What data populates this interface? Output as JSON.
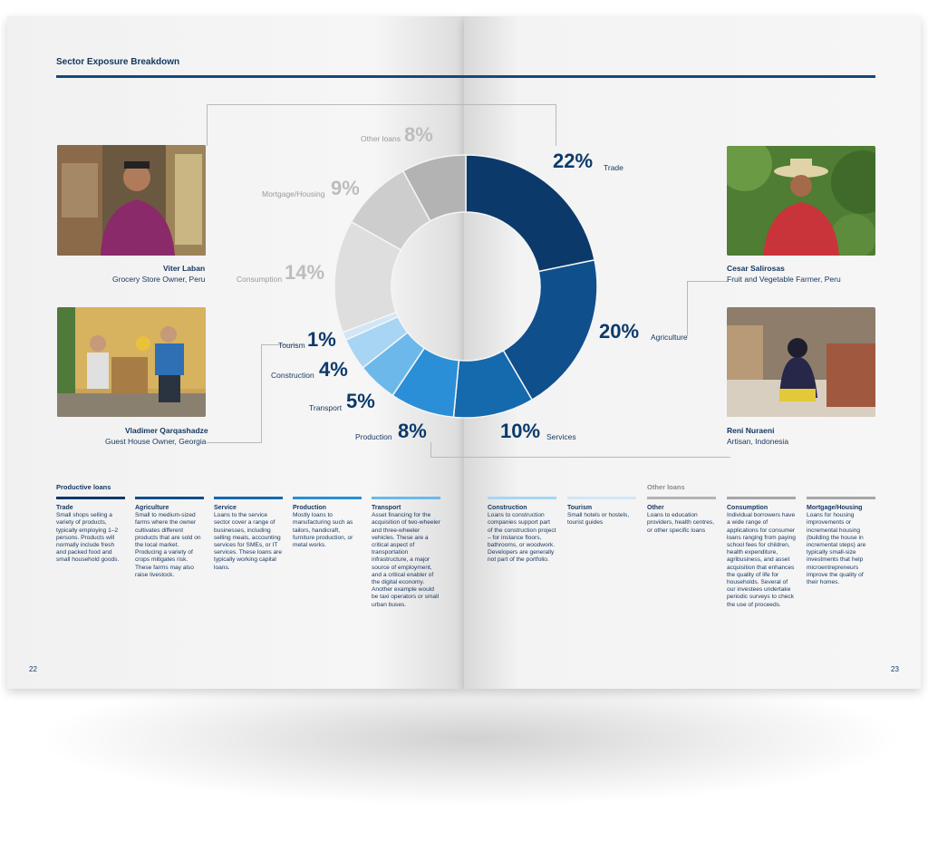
{
  "section_title": "Sector Exposure Breakdown",
  "page_numbers": {
    "left": "22",
    "right": "23"
  },
  "profiles": [
    {
      "name": "Viter Laban",
      "role": "Grocery Store Owner, Peru"
    },
    {
      "name": "Vladimer Qarqashadze",
      "role": "Guest House Owner, Georgia"
    },
    {
      "name": "Cesar Salirosas",
      "role": "Fruit and Vegetable Farmer, Peru"
    },
    {
      "name": "Reni Nuraeni",
      "role": "Artisan, Indonesia"
    }
  ],
  "chart_data": {
    "type": "pie",
    "donut": true,
    "slices": [
      {
        "label": "Trade",
        "value": 22,
        "display": "22%",
        "color": "#0b3a6a"
      },
      {
        "label": "Agriculture",
        "value": 20,
        "display": "20%",
        "color": "#0f4f8c"
      },
      {
        "label": "Services",
        "value": 10,
        "display": "10%",
        "color": "#1569ad"
      },
      {
        "label": "Production",
        "value": 8,
        "display": "8%",
        "color": "#2a8fd6"
      },
      {
        "label": "Transport",
        "value": 5,
        "display": "5%",
        "color": "#6cb8ea"
      },
      {
        "label": "Construction",
        "value": 4,
        "display": "4%",
        "color": "#a8d5f3"
      },
      {
        "label": "Tourism",
        "value": 1,
        "display": "1%",
        "color": "#cfe6f7"
      },
      {
        "label": "Consumption",
        "value": 14,
        "display": "14%",
        "color": "#dedede"
      },
      {
        "label": "Mortgage/Housing",
        "value": 9,
        "display": "9%",
        "color": "#cdcdcd"
      },
      {
        "label": "Other loans",
        "value": 8,
        "display": "8%",
        "color": "#b3b3b3"
      }
    ]
  },
  "groups": {
    "productive": "Productive loans",
    "other": "Other loans"
  },
  "definitions": [
    {
      "title": "Trade",
      "text": "Small shops selling a variety of products, typically employing 1–2 persons. Products will normally include fresh and packed food and small household goods.",
      "color": "#0b3a6a"
    },
    {
      "title": "Agriculture",
      "text": "Small to medium-sized farms where the owner cultivates different products that are sold on the local market. Producing a variety of crops mitigates risk. These farms may also raise livestock.",
      "color": "#0f4f8c"
    },
    {
      "title": "Service",
      "text": "Loans to the service sector cover a range of businesses, including selling meals, accounting services for SMEs, or IT services. These loans are typically working capital loans.",
      "color": "#1569ad"
    },
    {
      "title": "Production",
      "text": "Mostly loans to manufacturing such as tailors, handicraft, furniture production, or metal works.",
      "color": "#2a8fd6"
    },
    {
      "title": "Transport",
      "text": "Asset financing for the acquisition of two-wheeler and three-wheeler vehicles. These are a critical aspect of transportation infrastructure, a major source of employment, and a critical enabler of the digital economy. Another example would be taxi operators or small urban buses.",
      "color": "#6cb8ea"
    },
    {
      "title": "Construction",
      "text": "Loans to construction companies support part of the construction project – for instance floors, bathrooms, or woodwork. Developers are generally not part of the portfolio.",
      "color": "#a8d5f3"
    },
    {
      "title": "Tourism",
      "text": "Small hotels or hostels, tourist guides",
      "color": "#cfe6f7"
    },
    {
      "title": "Other",
      "text": "Loans to education providers, health centres, or other specific loans",
      "color": "#b3b3b3"
    },
    {
      "title": "Consumption",
      "text": "Individual borrowers have a wide range of applications for consumer loans ranging from paying school fees for children, health expenditure, agribusiness, and asset acquisition that enhances the quality of life for households. Several of our investees undertake periodic surveys to check the use of proceeds.",
      "color": "#a6a6a6"
    },
    {
      "title": "Mortgage/Housing",
      "text": "Loans for housing improvements or incremental housing (building the house in incremental steps) are typically small-size investments that help microentrepreneurs improve the quality of their homes.",
      "color": "#a6a6a6"
    }
  ]
}
